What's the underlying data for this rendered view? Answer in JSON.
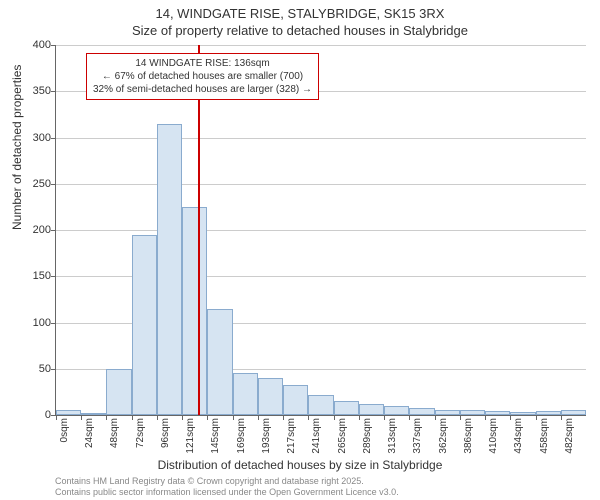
{
  "title_main": "14, WINDGATE RISE, STALYBRIDGE, SK15 3RX",
  "title_sub": "Size of property relative to detached houses in Stalybridge",
  "y_axis_label": "Number of detached properties",
  "x_axis_label": "Distribution of detached houses by size in Stalybridge",
  "chart": {
    "type": "histogram",
    "y_max": 400,
    "y_step": 50,
    "bar_fill": "#d6e4f2",
    "bar_border": "#8aabce",
    "grid_color": "#cccccc",
    "axis_color": "#666666",
    "background": "#ffffff",
    "ref_line_color": "#cc0000",
    "ref_line_x": 136,
    "x_ticks": [
      "0sqm",
      "24sqm",
      "48sqm",
      "72sqm",
      "96sqm",
      "121sqm",
      "145sqm",
      "169sqm",
      "193sqm",
      "217sqm",
      "241sqm",
      "265sqm",
      "289sqm",
      "313sqm",
      "337sqm",
      "362sqm",
      "386sqm",
      "410sqm",
      "434sqm",
      "458sqm",
      "482sqm"
    ],
    "y_ticks": [
      0,
      50,
      100,
      150,
      200,
      250,
      300,
      350,
      400
    ],
    "values": [
      5,
      0,
      50,
      195,
      315,
      225,
      115,
      45,
      40,
      32,
      22,
      15,
      12,
      10,
      8,
      5,
      5,
      4,
      3,
      4,
      5
    ]
  },
  "annotation": {
    "line1": "14 WINDGATE RISE: 136sqm",
    "line2": "← 67% of detached houses are smaller (700)",
    "line3": "32% of semi-detached houses are larger (328) →"
  },
  "footer": {
    "line1": "Contains HM Land Registry data © Crown copyright and database right 2025.",
    "line2": "Contains public sector information licensed under the Open Government Licence v3.0."
  }
}
